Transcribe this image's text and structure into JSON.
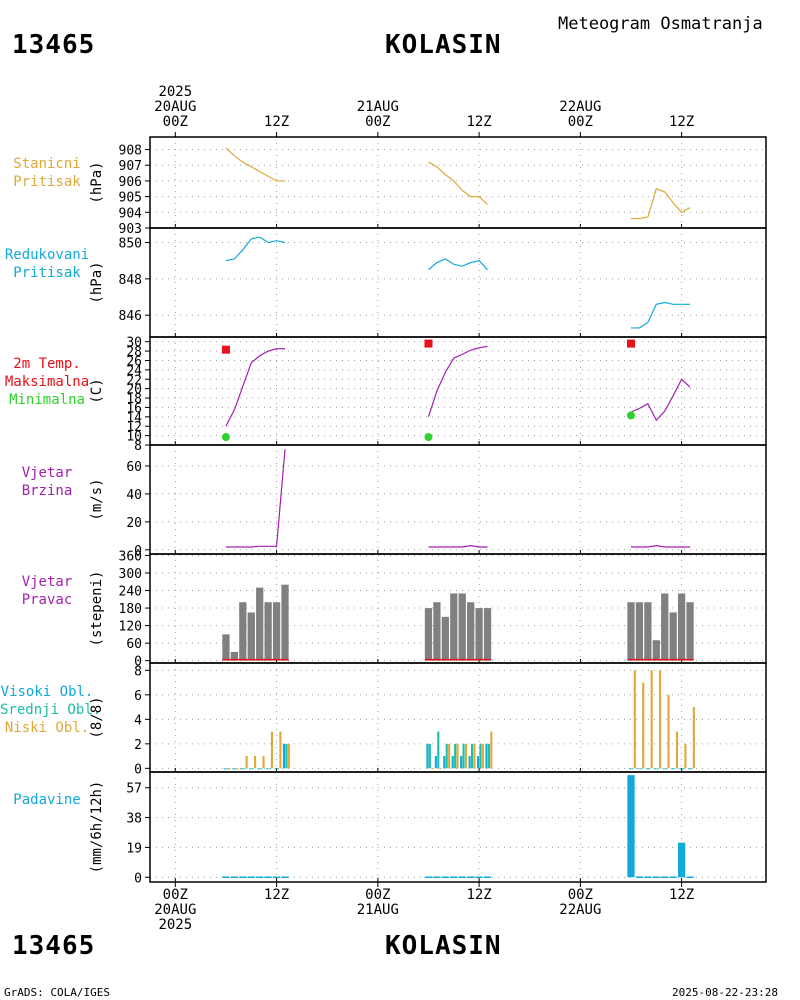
{
  "header": {
    "station_id": "13465",
    "station_name": "KOLASIN",
    "subtitle": "Meteogram Osmatranja"
  },
  "footer": {
    "left": "GrADS: COLA/IGES",
    "right": "2025-08-22-23:28"
  },
  "time_axis": {
    "top_ticks": [
      {
        "h": 0,
        "lines": [
          "2025",
          "20AUG",
          "00Z"
        ]
      },
      {
        "h": 12,
        "lines": [
          "12Z"
        ]
      },
      {
        "h": 24,
        "lines": [
          "21AUG",
          "00Z"
        ]
      },
      {
        "h": 36,
        "lines": [
          "12Z"
        ]
      },
      {
        "h": 48,
        "lines": [
          "22AUG",
          "00Z"
        ]
      },
      {
        "h": 60,
        "lines": [
          "12Z"
        ]
      }
    ],
    "bottom_ticks": [
      {
        "h": 0,
        "lines": [
          "00Z",
          "20AUG",
          "2025"
        ]
      },
      {
        "h": 12,
        "lines": [
          "12Z"
        ]
      },
      {
        "h": 24,
        "lines": [
          "00Z",
          "21AUG"
        ]
      },
      {
        "h": 36,
        "lines": [
          "12Z"
        ]
      },
      {
        "h": 48,
        "lines": [
          "00Z",
          "22AUG"
        ]
      },
      {
        "h": 60,
        "lines": [
          "12Z"
        ]
      }
    ],
    "range_hours": [
      -3,
      70
    ]
  },
  "colors": {
    "orange": "#e0a838",
    "cyan": "#11a9d8",
    "red": "#e8101a",
    "green": "#2ed12e",
    "purple": "#a31fb0",
    "teal": "#19c0a8",
    "gray": "#808080",
    "grid": "#a0a0a0"
  },
  "chart_data": [
    {
      "type": "line",
      "panel": "stanicni",
      "label_lines": [
        "Stanicni",
        "Pritisak"
      ],
      "unit": "(hPa)",
      "ylim": [
        903,
        908.8
      ],
      "yticks": [
        903,
        904,
        905,
        906,
        907,
        908
      ],
      "series": [
        {
          "name": "Stanicni Pritisak",
          "color": "#e0a838",
          "segments": [
            {
              "x": [
                6,
                7,
                8,
                9,
                10,
                11,
                12,
                13
              ],
              "y": [
                908.1,
                907.6,
                907.2,
                906.9,
                906.6,
                906.3,
                906.0,
                906.0
              ]
            },
            {
              "x": [
                30,
                31,
                32,
                33,
                34,
                35,
                36,
                37
              ],
              "y": [
                907.2,
                906.9,
                906.4,
                906.0,
                905.4,
                905.0,
                905.0,
                904.5
              ]
            },
            {
              "x": [
                54,
                55,
                56,
                57,
                58,
                59,
                60,
                61
              ],
              "y": [
                903.6,
                903.6,
                903.7,
                905.5,
                905.3,
                904.6,
                904.0,
                904.3
              ]
            }
          ]
        }
      ]
    },
    {
      "type": "line",
      "panel": "redukovani",
      "label_lines": [
        "Redukovani",
        "Pritisak"
      ],
      "unit": "(hPa)",
      "ylim": [
        844.8,
        850.8
      ],
      "yticks": [
        846,
        848,
        850
      ],
      "series": [
        {
          "name": "Redukovani Pritisak",
          "color": "#11a9d8",
          "segments": [
            {
              "x": [
                6,
                7,
                8,
                9,
                10,
                11,
                12,
                13
              ],
              "y": [
                849.0,
                849.1,
                849.6,
                850.2,
                850.3,
                850.0,
                850.1,
                850.0
              ]
            },
            {
              "x": [
                30,
                31,
                32,
                33,
                34,
                35,
                36,
                37
              ],
              "y": [
                848.5,
                848.9,
                849.1,
                848.8,
                848.7,
                848.9,
                849.0,
                848.5
              ]
            },
            {
              "x": [
                54,
                55,
                56,
                57,
                58,
                59,
                60,
                61
              ],
              "y": [
                845.3,
                845.3,
                845.6,
                846.6,
                846.7,
                846.6,
                846.6,
                846.6
              ]
            }
          ]
        }
      ]
    },
    {
      "type": "line",
      "panel": "temperatura",
      "label_lines": [
        "2m Temp.",
        "Maksimalna",
        "Minimalna"
      ],
      "label_colors": [
        "#e8101a",
        "#e8101a",
        "#2ed12e"
      ],
      "unit": "(C)",
      "ylim": [
        8,
        31
      ],
      "yticks": [
        8,
        10,
        12,
        14,
        16,
        18,
        20,
        22,
        24,
        26,
        28,
        30
      ],
      "series": [
        {
          "name": "2m Temp.",
          "color": "#a31fb0",
          "segments": [
            {
              "x": [
                6,
                7,
                8,
                9,
                10,
                11,
                12,
                13
              ],
              "y": [
                12.0,
                15.5,
                20.5,
                25.5,
                27.0,
                28.0,
                28.5,
                28.5
              ]
            },
            {
              "x": [
                30,
                31,
                32,
                33,
                34,
                35,
                36,
                37
              ],
              "y": [
                14.0,
                19.5,
                23.5,
                26.5,
                27.3,
                28.2,
                28.7,
                29.0
              ]
            },
            {
              "x": [
                54,
                55,
                56,
                57,
                58,
                59,
                60,
                61
              ],
              "y": [
                15.0,
                15.8,
                16.8,
                13.3,
                15.2,
                18.5,
                22.0,
                20.3
              ]
            }
          ]
        }
      ],
      "markers": [
        {
          "name": "Maksimalna",
          "shape": "square",
          "color": "#e8101a",
          "points": [
            [
              6,
              28.3
            ],
            [
              30,
              29.6
            ],
            [
              54,
              29.6
            ]
          ]
        },
        {
          "name": "Minimalna",
          "shape": "circle",
          "color": "#2ed12e",
          "points": [
            [
              6,
              9.7
            ],
            [
              30,
              9.7
            ],
            [
              54,
              14.3
            ]
          ]
        }
      ]
    },
    {
      "type": "line",
      "panel": "vjetar_brzina",
      "label_lines": [
        "Vjetar",
        "Brzina"
      ],
      "unit": "(m/s)",
      "ylim": [
        -3,
        75
      ],
      "yticks": [
        0,
        20,
        40,
        60
      ],
      "series": [
        {
          "name": "Vjetar Brzina",
          "color": "#a31fb0",
          "segments": [
            {
              "x": [
                6,
                7,
                8,
                9,
                10,
                11,
                12,
                13
              ],
              "y": [
                2,
                2,
                2,
                2,
                2.5,
                2.5,
                2.5,
                72
              ]
            },
            {
              "x": [
                30,
                31,
                32,
                33,
                34,
                35,
                36,
                37
              ],
              "y": [
                2,
                2,
                2,
                2,
                2,
                3,
                2,
                2
              ]
            },
            {
              "x": [
                54,
                55,
                56,
                57,
                58,
                59,
                60,
                61
              ],
              "y": [
                2,
                2,
                2,
                3,
                2,
                2,
                2,
                2
              ]
            }
          ]
        }
      ]
    },
    {
      "type": "bar",
      "panel": "vjetar_pravac",
      "label_lines": [
        "Vjetar",
        "Pravac"
      ],
      "unit": "(stepeni)",
      "ylim": [
        -8,
        365
      ],
      "yticks": [
        0,
        60,
        120,
        180,
        240,
        300,
        360
      ],
      "tick_labels": [
        "0",
        "60",
        "120",
        "180",
        "240",
        "300",
        "360"
      ],
      "series": [
        {
          "name": "Pravac",
          "color": "#808080",
          "x": [
            6,
            7,
            8,
            9,
            10,
            11,
            12,
            13,
            30,
            31,
            32,
            33,
            34,
            35,
            36,
            37,
            54,
            55,
            56,
            57,
            58,
            59,
            60,
            61
          ],
          "values": [
            90,
            30,
            200,
            165,
            250,
            200,
            200,
            260,
            180,
            200,
            150,
            230,
            230,
            200,
            180,
            180,
            200,
            200,
            200,
            70,
            230,
            165,
            230,
            200
          ]
        }
      ]
    },
    {
      "type": "bar",
      "panel": "oblacnost",
      "label_lines": [
        "Visoki Obl.",
        "Srednji Obl.",
        "Niski Obl."
      ],
      "label_colors": [
        "#11a9d8",
        "#19c0a8",
        "#e0a838"
      ],
      "unit": "(8/8)",
      "ylim": [
        -0.3,
        8.6
      ],
      "yticks": [
        0,
        2,
        4,
        6,
        8
      ],
      "x": [
        6,
        7,
        8,
        9,
        10,
        11,
        12,
        13,
        30,
        31,
        32,
        33,
        34,
        35,
        36,
        37,
        54,
        55,
        56,
        57,
        58,
        59,
        60,
        61
      ],
      "series": [
        {
          "name": "Visoki Obl.",
          "color": "#11a9d8",
          "values": [
            0,
            0,
            0,
            0,
            0,
            0,
            0,
            2,
            2,
            1,
            1,
            1,
            1,
            1,
            1,
            2,
            0,
            0,
            0,
            0,
            0,
            0,
            0,
            0
          ]
        },
        {
          "name": "Srednji Obl.",
          "color": "#19c0a8",
          "values": [
            0,
            0,
            0,
            0,
            0,
            0,
            0,
            2,
            2,
            3,
            2,
            2,
            2,
            2,
            2,
            2,
            0,
            0,
            0,
            0,
            0,
            0,
            0,
            0
          ]
        },
        {
          "name": "Niski Obl.",
          "color": "#e0a838",
          "values": [
            0,
            0,
            1,
            1,
            1,
            3,
            3,
            2,
            0,
            0,
            2,
            2,
            2,
            2,
            2,
            3,
            8,
            7,
            8,
            8,
            6,
            3,
            2,
            5
          ]
        }
      ]
    },
    {
      "type": "bar",
      "panel": "padavine",
      "label_lines": [
        "Padavine"
      ],
      "label_colors": [
        "#11a9d8"
      ],
      "unit": "(mm/6h/12h)",
      "ylim": [
        -3,
        67
      ],
      "yticks": [
        0,
        19,
        38,
        57
      ],
      "series": [
        {
          "name": "Padavine",
          "color": "#11a9d8",
          "x": [
            6,
            7,
            8,
            9,
            10,
            11,
            12,
            13,
            30,
            31,
            32,
            33,
            34,
            35,
            36,
            37,
            54,
            55,
            56,
            57,
            58,
            59,
            60,
            61
          ],
          "values": [
            0.5,
            0.5,
            0.5,
            0.5,
            0.5,
            0.5,
            0.5,
            0.5,
            0.5,
            0.5,
            0.5,
            0.5,
            0.5,
            0.5,
            0.5,
            0.5,
            65,
            0.5,
            0.5,
            0.5,
            0.5,
            0.5,
            22,
            0.5
          ]
        }
      ]
    }
  ]
}
